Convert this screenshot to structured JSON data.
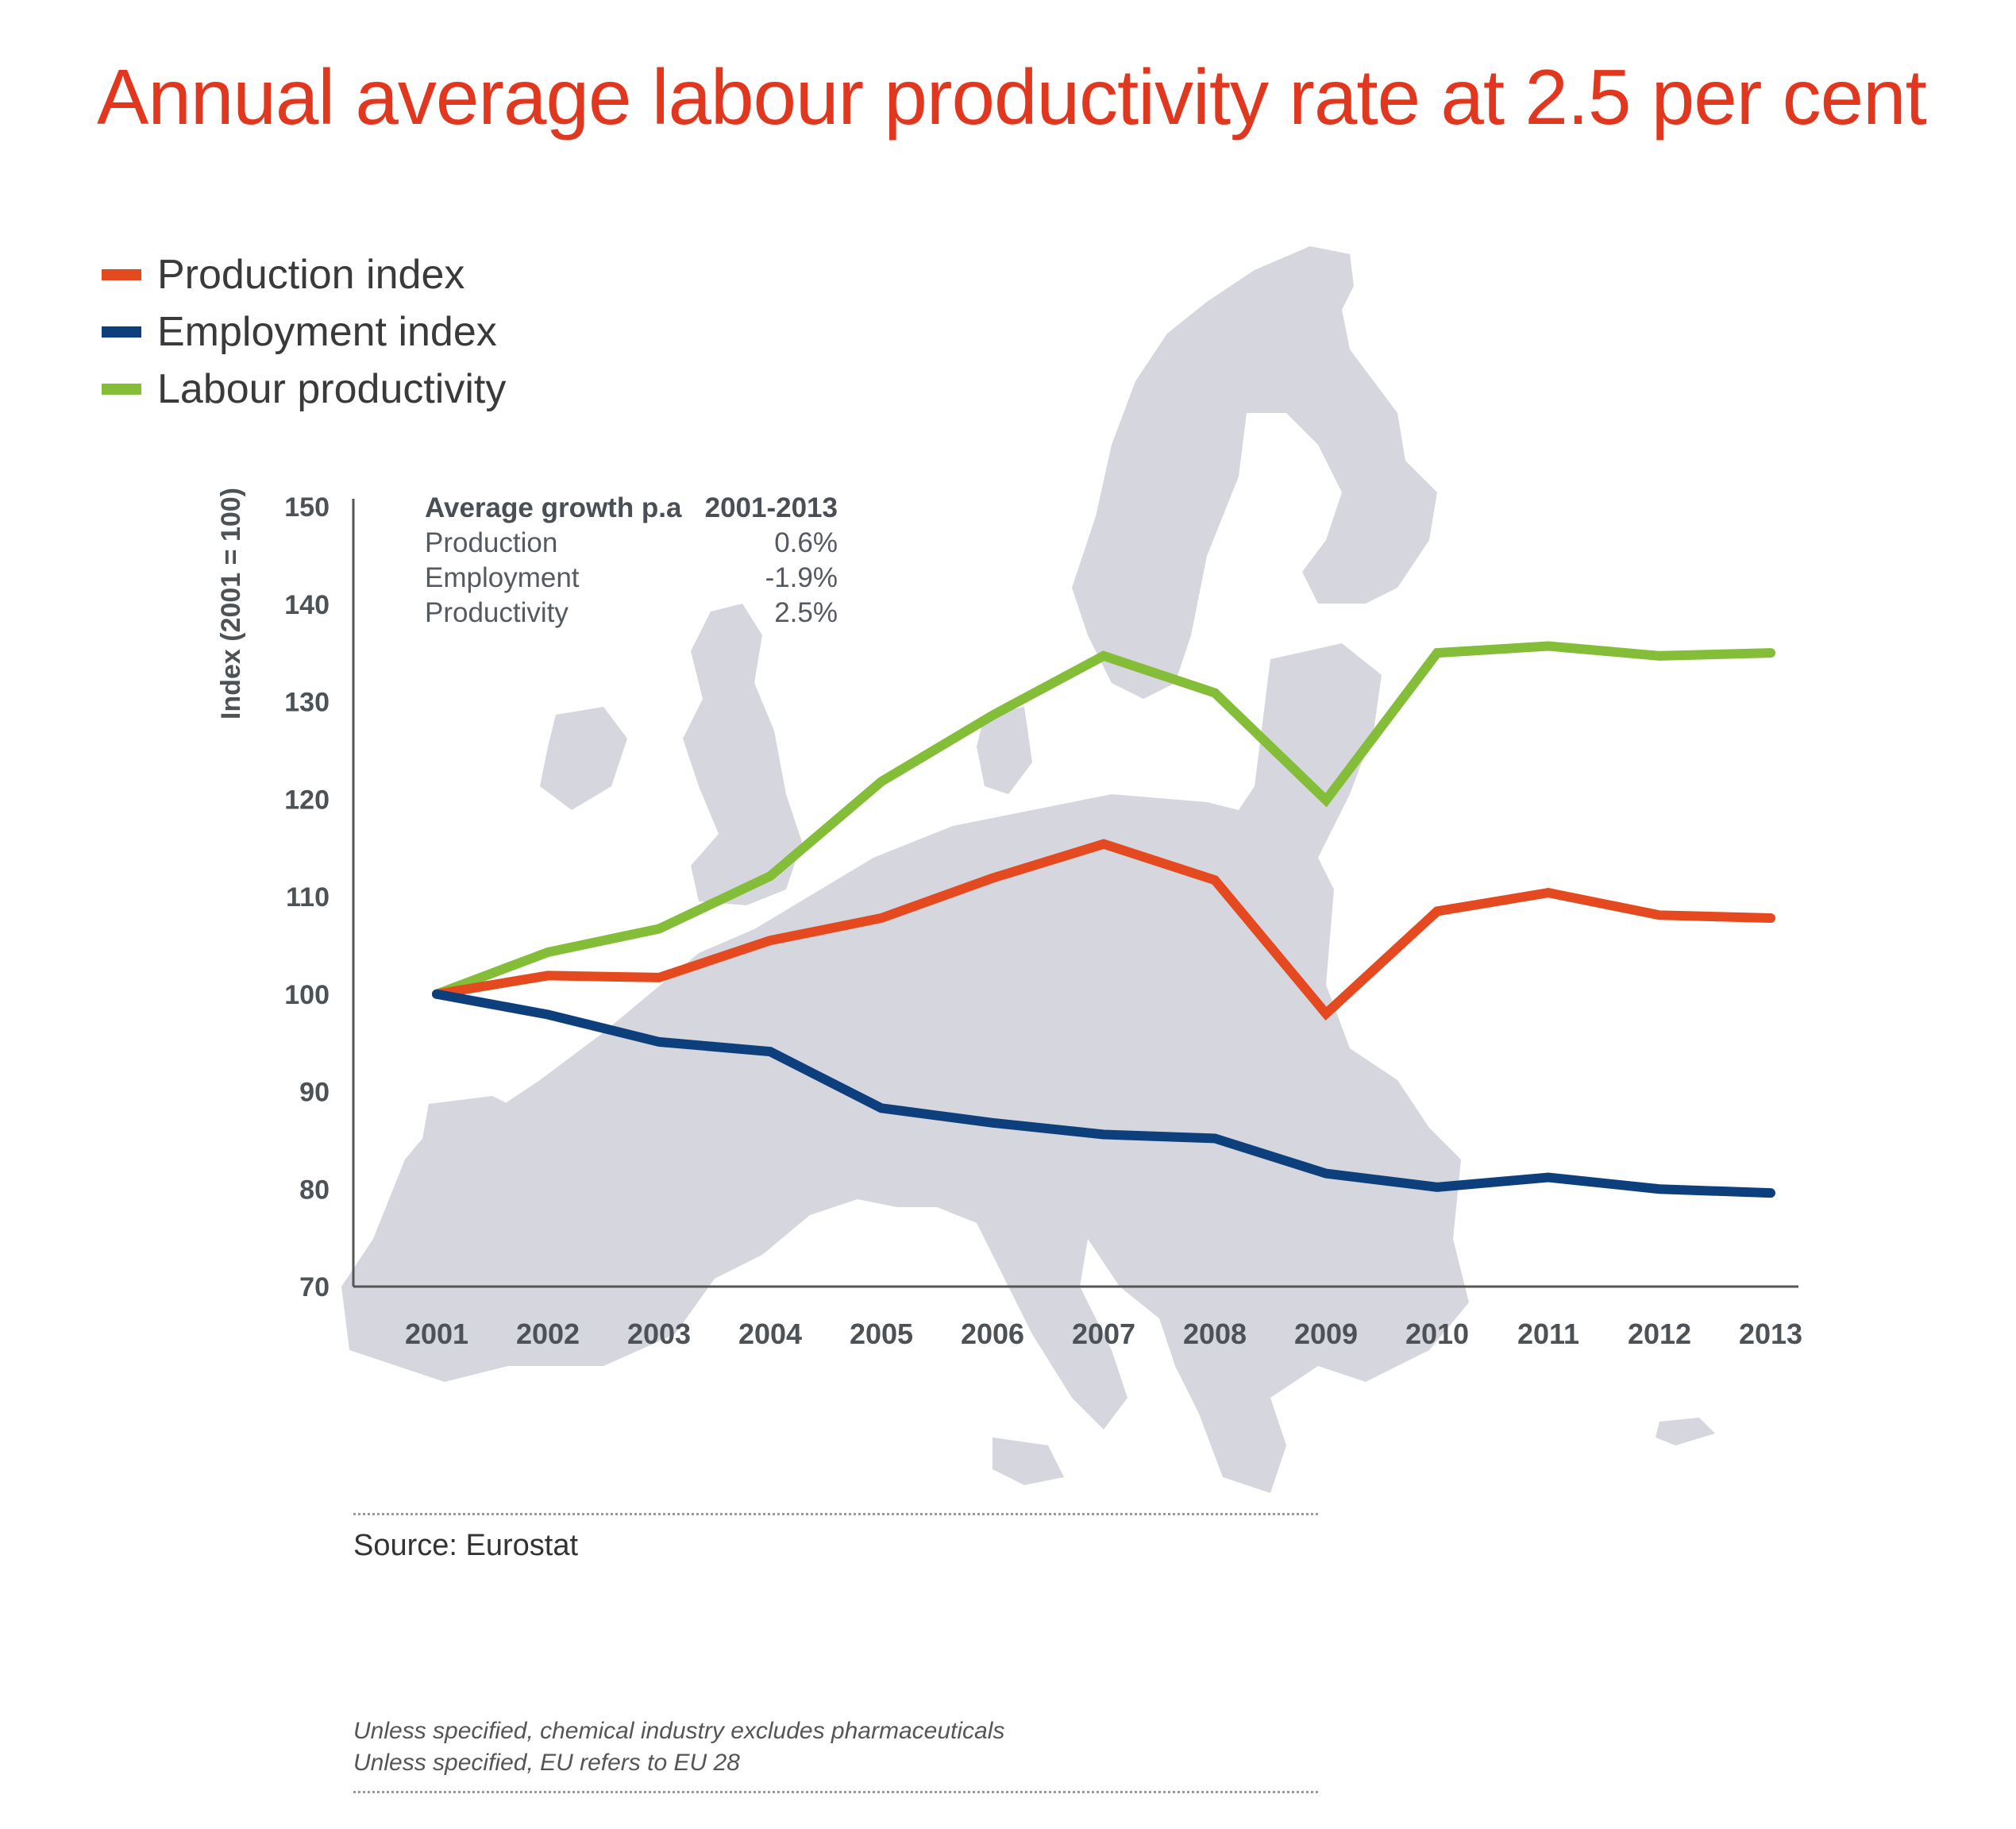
{
  "title": "Annual average labour productivity rate at 2.5 per cent",
  "legend": [
    {
      "label": "Production index",
      "color": "#e5491f"
    },
    {
      "label": "Employment index",
      "color": "#0e3f7d"
    },
    {
      "label": "Labour productivity",
      "color": "#84bd38"
    }
  ],
  "summary": {
    "header": {
      "label": "Average growth p.a",
      "value": "2001-2013"
    },
    "rows": [
      {
        "label": "Production",
        "value": "0.6%"
      },
      {
        "label": "Employment",
        "value": "-1.9%"
      },
      {
        "label": "Productivity",
        "value": "2.5%"
      }
    ]
  },
  "chart_data": {
    "type": "line",
    "title": "Annual average labour productivity rate at 2.5 per cent",
    "xlabel": "",
    "ylabel": "Index (2001 = 100)",
    "ylim": [
      70,
      150
    ],
    "yticks": [
      70,
      80,
      90,
      100,
      110,
      120,
      130,
      140,
      150
    ],
    "x": [
      "2001",
      "2002",
      "2003",
      "2004",
      "2005",
      "2006",
      "2007",
      "2008",
      "2009",
      "2010",
      "2011",
      "2012",
      "2013"
    ],
    "grid": false,
    "series": [
      {
        "name": "Production index",
        "color": "#e5491f",
        "values": [
          100,
          101.9,
          101.7,
          105.5,
          107.8,
          111.9,
          115.4,
          111.7,
          98.0,
          108.5,
          110.4,
          108.1,
          107.8
        ]
      },
      {
        "name": "Employment index",
        "color": "#0e3f7d",
        "values": [
          100,
          97.9,
          95.1,
          94.1,
          88.3,
          86.8,
          85.6,
          85.2,
          81.6,
          80.2,
          81.2,
          80.0,
          79.6
        ]
      },
      {
        "name": "Labour productivity",
        "color": "#84bd38",
        "values": [
          100,
          104.3,
          106.7,
          112.1,
          121.8,
          128.6,
          134.7,
          130.9,
          119.9,
          135.0,
          135.7,
          134.7,
          135.0
        ]
      }
    ]
  },
  "source": "Source: Eurostat",
  "notes": [
    "Unless specified, chemical industry excludes pharmaceuticals",
    "Unless specified, EU refers to EU 28"
  ]
}
